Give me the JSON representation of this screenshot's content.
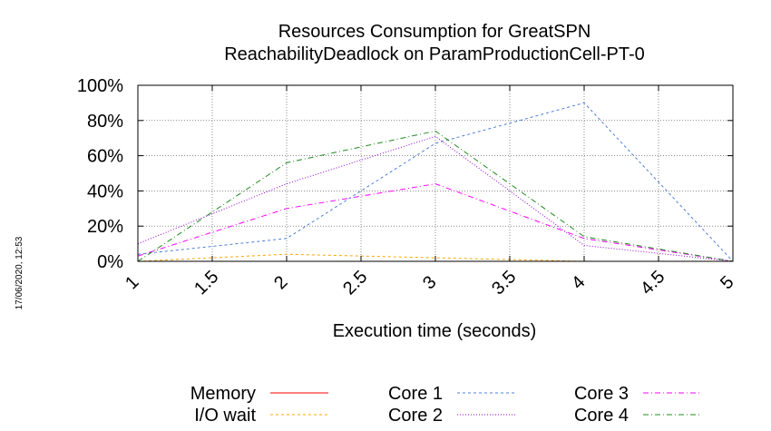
{
  "chart_data": {
    "type": "line",
    "title": "Resources Consumption for GreatSPN",
    "subtitle": "ReachabilityDeadlock on ParamProductionCell-PT-0",
    "xlabel": "Execution time (seconds)",
    "ylabel": "",
    "side_stamp": "17/06/2020, 12:53",
    "xlim": [
      1,
      5
    ],
    "ylim": [
      0,
      100
    ],
    "x_ticks": [
      "1",
      "1.5",
      "2",
      "2.5",
      "3",
      "3.5",
      "4",
      "4.5",
      "5"
    ],
    "y_ticks": [
      "0%",
      "20%",
      "40%",
      "60%",
      "80%",
      "100%"
    ],
    "grid": true,
    "legend_position": "bottom",
    "series": [
      {
        "name": "Memory",
        "color": "#ff0000",
        "dash": "solid",
        "x": [
          1,
          2,
          3,
          4,
          5
        ],
        "values": [
          0,
          0,
          0,
          0,
          0
        ]
      },
      {
        "name": "I/O wait",
        "color": "#ffa500",
        "dash": "dashed",
        "x": [
          1,
          2,
          3,
          4,
          5
        ],
        "values": [
          0,
          4,
          2,
          0,
          0
        ]
      },
      {
        "name": "Core 1",
        "color": "#4d7fd9",
        "dash": "dashed",
        "x": [
          1,
          2,
          3,
          4,
          5
        ],
        "values": [
          4,
          13,
          67,
          90,
          0
        ]
      },
      {
        "name": "Core 2",
        "color": "#9400d3",
        "dash": "dotted",
        "x": [
          1,
          2,
          3,
          4,
          5
        ],
        "values": [
          10,
          44,
          71,
          9,
          0
        ]
      },
      {
        "name": "Core 3",
        "color": "#ff00ff",
        "dash": "dashdot",
        "x": [
          1,
          2,
          3,
          4,
          5
        ],
        "values": [
          3,
          30,
          44,
          13,
          0
        ]
      },
      {
        "name": "Core 4",
        "color": "#228b22",
        "dash": "dashdot",
        "x": [
          1,
          2,
          3,
          4,
          5
        ],
        "values": [
          0,
          56,
          74,
          14,
          0
        ]
      }
    ]
  }
}
